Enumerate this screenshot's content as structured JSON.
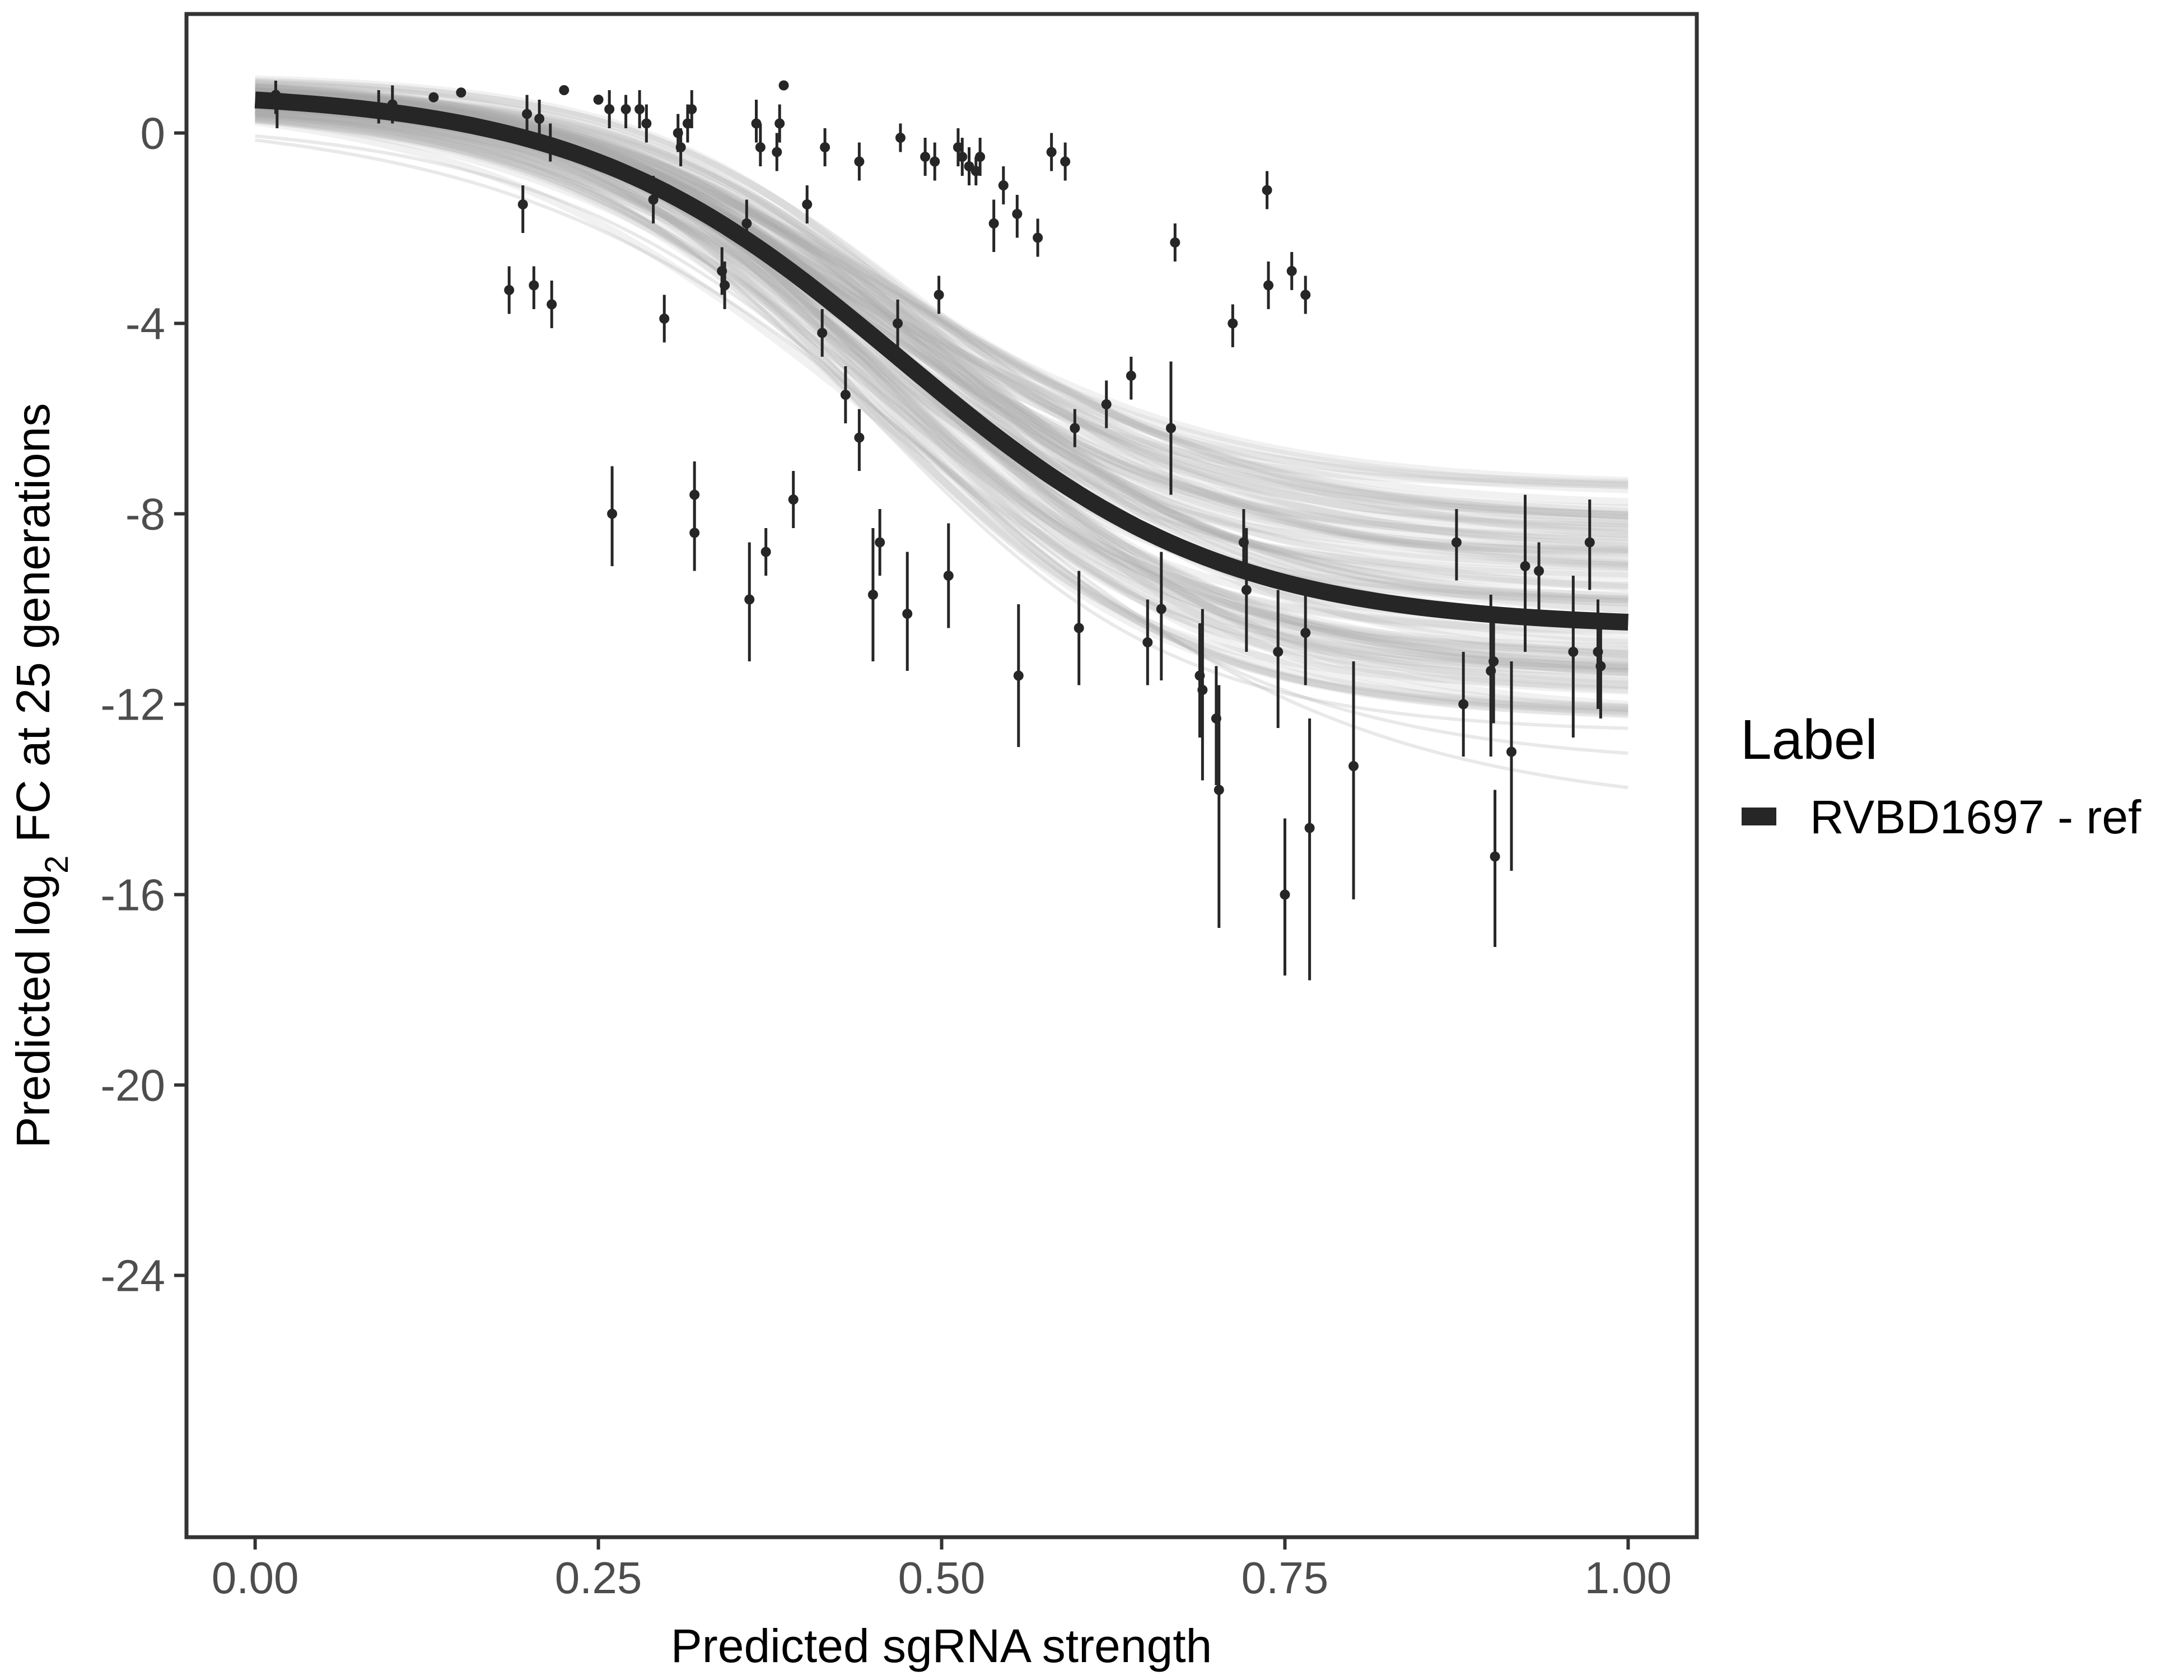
{
  "chart_data": {
    "type": "scatter",
    "xlabel": "Predicted sgRNA strength",
    "ylabel_parts": [
      "Predicted  log",
      "2",
      " FC at 25 generations"
    ],
    "xlim": [
      -0.05,
      1.05
    ],
    "ylim": [
      -29.5,
      2.5
    ],
    "x_ticks": [
      0,
      0.25,
      0.5,
      0.75,
      1
    ],
    "x_tick_labels": [
      "0.00",
      "0.25",
      "0.50",
      "0.75",
      "1.00"
    ],
    "y_ticks": [
      0,
      -4,
      -8,
      -12,
      -16,
      -20,
      -24
    ],
    "y_tick_labels": [
      "0",
      "-4",
      "-8",
      "-12",
      "-16",
      "-20",
      "-24"
    ],
    "legend": {
      "title": "Label",
      "entries": [
        {
          "label": "RVBD1697 - ref",
          "color": "#262626"
        }
      ]
    },
    "colors": {
      "fit_line": "#262626",
      "posterior_band": "#a6a6a6",
      "points": "#262626",
      "panel_border": "#333333"
    },
    "fit_curve": {
      "description": "logistic fit",
      "upper": 0.9,
      "lower": -10.4,
      "midpoint": 0.47,
      "slope": 8.5
    },
    "posterior_band": {
      "upper_edge_at_x1": -7.4,
      "lower_edge_at_x1": -12.4,
      "outlier_draw_end_at_x1": -14.3
    },
    "points": [
      {
        "x": 0.015,
        "y": 0.8,
        "lo": 0.4,
        "hi": 1.1
      },
      {
        "x": 0.016,
        "y": 0.6,
        "lo": 0.1,
        "hi": 0.9
      },
      {
        "x": 0.09,
        "y": 0.5,
        "lo": 0.2,
        "hi": 0.9
      },
      {
        "x": 0.1,
        "y": 0.6,
        "lo": 0.2,
        "hi": 1.0
      },
      {
        "x": 0.13,
        "y": 0.75,
        "lo": 0.65,
        "hi": 0.85
      },
      {
        "x": 0.15,
        "y": 0.85,
        "lo": 0.8,
        "hi": 0.9
      },
      {
        "x": 0.185,
        "y": -3.3,
        "lo": -3.8,
        "hi": -2.8
      },
      {
        "x": 0.195,
        "y": -1.5,
        "lo": -2.1,
        "hi": -1.1
      },
      {
        "x": 0.198,
        "y": 0.4,
        "lo": 0.0,
        "hi": 0.8
      },
      {
        "x": 0.203,
        "y": -3.2,
        "lo": -3.7,
        "hi": -2.8
      },
      {
        "x": 0.207,
        "y": 0.3,
        "lo": -0.1,
        "hi": 0.7
      },
      {
        "x": 0.215,
        "y": -0.2,
        "lo": -0.6,
        "hi": 0.2
      },
      {
        "x": 0.216,
        "y": -3.6,
        "lo": -4.1,
        "hi": -3.1
      },
      {
        "x": 0.225,
        "y": 0.9,
        "lo": 0.85,
        "hi": 0.95
      },
      {
        "x": 0.25,
        "y": 0.7,
        "lo": 0.6,
        "hi": 0.8
      },
      {
        "x": 0.258,
        "y": 0.5,
        "lo": 0.1,
        "hi": 0.9
      },
      {
        "x": 0.26,
        "y": -8.0,
        "lo": -9.1,
        "hi": -7.0
      },
      {
        "x": 0.27,
        "y": 0.5,
        "lo": 0.1,
        "hi": 0.8
      },
      {
        "x": 0.28,
        "y": 0.5,
        "lo": 0.1,
        "hi": 0.9
      },
      {
        "x": 0.285,
        "y": 0.2,
        "lo": -0.2,
        "hi": 0.6
      },
      {
        "x": 0.29,
        "y": -1.4,
        "lo": -1.9,
        "hi": -0.9
      },
      {
        "x": 0.298,
        "y": -3.9,
        "lo": -4.4,
        "hi": -3.4
      },
      {
        "x": 0.308,
        "y": 0.0,
        "lo": -0.4,
        "hi": 0.4
      },
      {
        "x": 0.31,
        "y": -0.3,
        "lo": -0.7,
        "hi": 0.1
      },
      {
        "x": 0.315,
        "y": 0.2,
        "lo": -0.2,
        "hi": 0.6
      },
      {
        "x": 0.318,
        "y": 0.5,
        "lo": 0.1,
        "hi": 0.9
      },
      {
        "x": 0.32,
        "y": -7.6,
        "lo": -8.4,
        "hi": -6.9
      },
      {
        "x": 0.32,
        "y": -8.4,
        "lo": -9.2,
        "hi": -7.7
      },
      {
        "x": 0.34,
        "y": -2.9,
        "lo": -3.4,
        "hi": -2.4
      },
      {
        "x": 0.342,
        "y": -3.2,
        "lo": -3.7,
        "hi": -2.7
      },
      {
        "x": 0.358,
        "y": -1.9,
        "lo": -2.4,
        "hi": -1.4
      },
      {
        "x": 0.36,
        "y": -9.8,
        "lo": -11.1,
        "hi": -8.6
      },
      {
        "x": 0.365,
        "y": 0.2,
        "lo": -0.2,
        "hi": 0.7
      },
      {
        "x": 0.368,
        "y": -0.3,
        "lo": -0.7,
        "hi": 0.2
      },
      {
        "x": 0.372,
        "y": -8.8,
        "lo": -9.3,
        "hi": -8.3
      },
      {
        "x": 0.38,
        "y": -0.4,
        "lo": -0.8,
        "hi": 0.0
      },
      {
        "x": 0.382,
        "y": 0.2,
        "lo": -0.2,
        "hi": 0.6
      },
      {
        "x": 0.385,
        "y": 1.0,
        "lo": 0.95,
        "hi": 1.05
      },
      {
        "x": 0.392,
        "y": -7.7,
        "lo": -8.3,
        "hi": -7.1
      },
      {
        "x": 0.402,
        "y": -1.5,
        "lo": -1.9,
        "hi": -1.1
      },
      {
        "x": 0.413,
        "y": -4.2,
        "lo": -4.7,
        "hi": -3.7
      },
      {
        "x": 0.415,
        "y": -0.3,
        "lo": -0.7,
        "hi": 0.1
      },
      {
        "x": 0.43,
        "y": -5.5,
        "lo": -6.1,
        "hi": -4.9
      },
      {
        "x": 0.44,
        "y": -6.4,
        "lo": -7.1,
        "hi": -5.8
      },
      {
        "x": 0.44,
        "y": -0.6,
        "lo": -1.0,
        "hi": -0.2
      },
      {
        "x": 0.45,
        "y": -9.7,
        "lo": -11.1,
        "hi": -8.3
      },
      {
        "x": 0.455,
        "y": -8.6,
        "lo": -9.3,
        "hi": -7.9
      },
      {
        "x": 0.468,
        "y": -4.0,
        "lo": -4.5,
        "hi": -3.5
      },
      {
        "x": 0.47,
        "y": -0.1,
        "lo": -0.4,
        "hi": 0.2
      },
      {
        "x": 0.475,
        "y": -10.1,
        "lo": -11.3,
        "hi": -8.8
      },
      {
        "x": 0.488,
        "y": -0.5,
        "lo": -0.9,
        "hi": -0.1
      },
      {
        "x": 0.495,
        "y": -0.6,
        "lo": -1.0,
        "hi": -0.2
      },
      {
        "x": 0.498,
        "y": -3.4,
        "lo": -3.8,
        "hi": -3.0
      },
      {
        "x": 0.505,
        "y": -9.3,
        "lo": -10.4,
        "hi": -8.2
      },
      {
        "x": 0.512,
        "y": -0.3,
        "lo": -0.7,
        "hi": 0.1
      },
      {
        "x": 0.515,
        "y": -0.5,
        "lo": -0.9,
        "hi": -0.1
      },
      {
        "x": 0.52,
        "y": -0.7,
        "lo": -1.1,
        "hi": -0.3
      },
      {
        "x": 0.525,
        "y": -0.8,
        "lo": -1.1,
        "hi": -0.5
      },
      {
        "x": 0.528,
        "y": -0.5,
        "lo": -0.9,
        "hi": -0.1
      },
      {
        "x": 0.538,
        "y": -1.9,
        "lo": -2.5,
        "hi": -1.4
      },
      {
        "x": 0.545,
        "y": -1.1,
        "lo": -1.5,
        "hi": -0.7
      },
      {
        "x": 0.555,
        "y": -1.7,
        "lo": -2.2,
        "hi": -1.3
      },
      {
        "x": 0.556,
        "y": -11.4,
        "lo": -12.9,
        "hi": -9.9
      },
      {
        "x": 0.57,
        "y": -2.2,
        "lo": -2.6,
        "hi": -1.8
      },
      {
        "x": 0.58,
        "y": -0.4,
        "lo": -0.8,
        "hi": 0.0
      },
      {
        "x": 0.59,
        "y": -0.6,
        "lo": -1.0,
        "hi": -0.2
      },
      {
        "x": 0.597,
        "y": -6.2,
        "lo": -6.6,
        "hi": -5.8
      },
      {
        "x": 0.6,
        "y": -10.4,
        "lo": -11.6,
        "hi": -9.2
      },
      {
        "x": 0.62,
        "y": -5.7,
        "lo": -6.2,
        "hi": -5.2
      },
      {
        "x": 0.638,
        "y": -5.1,
        "lo": -5.6,
        "hi": -4.7
      },
      {
        "x": 0.65,
        "y": -10.7,
        "lo": -11.6,
        "hi": -9.8
      },
      {
        "x": 0.66,
        "y": -10.0,
        "lo": -11.5,
        "hi": -8.8
      },
      {
        "x": 0.667,
        "y": -6.2,
        "lo": -7.6,
        "hi": -4.8
      },
      {
        "x": 0.67,
        "y": -2.3,
        "lo": -2.7,
        "hi": -1.9
      },
      {
        "x": 0.688,
        "y": -11.4,
        "lo": -12.7,
        "hi": -10.3
      },
      {
        "x": 0.69,
        "y": -11.7,
        "lo": -13.6,
        "hi": -10.0
      },
      {
        "x": 0.7,
        "y": -12.3,
        "lo": -13.7,
        "hi": -11.2
      },
      {
        "x": 0.702,
        "y": -13.8,
        "lo": -16.7,
        "hi": -11.6
      },
      {
        "x": 0.712,
        "y": -4.0,
        "lo": -4.5,
        "hi": -3.6
      },
      {
        "x": 0.72,
        "y": -8.6,
        "lo": -9.2,
        "hi": -7.9
      },
      {
        "x": 0.722,
        "y": -9.6,
        "lo": -10.9,
        "hi": -8.3
      },
      {
        "x": 0.737,
        "y": -1.2,
        "lo": -1.6,
        "hi": -0.8
      },
      {
        "x": 0.738,
        "y": -3.2,
        "lo": -3.7,
        "hi": -2.7
      },
      {
        "x": 0.745,
        "y": -10.9,
        "lo": -12.5,
        "hi": -9.6
      },
      {
        "x": 0.75,
        "y": -16.0,
        "lo": -17.7,
        "hi": -14.4
      },
      {
        "x": 0.755,
        "y": -2.9,
        "lo": -3.3,
        "hi": -2.5
      },
      {
        "x": 0.765,
        "y": -10.5,
        "lo": -11.6,
        "hi": -9.5
      },
      {
        "x": 0.765,
        "y": -3.4,
        "lo": -3.8,
        "hi": -3.0
      },
      {
        "x": 0.768,
        "y": -14.6,
        "lo": -17.8,
        "hi": -12.3
      },
      {
        "x": 0.8,
        "y": -13.3,
        "lo": -16.1,
        "hi": -11.1
      },
      {
        "x": 0.875,
        "y": -8.6,
        "lo": -9.4,
        "hi": -7.9
      },
      {
        "x": 0.88,
        "y": -12.0,
        "lo": -13.1,
        "hi": -10.9
      },
      {
        "x": 0.9,
        "y": -11.3,
        "lo": -13.1,
        "hi": -9.7
      },
      {
        "x": 0.902,
        "y": -11.1,
        "lo": -12.4,
        "hi": -10.1
      },
      {
        "x": 0.903,
        "y": -15.2,
        "lo": -17.1,
        "hi": -13.8
      },
      {
        "x": 0.915,
        "y": -13.0,
        "lo": -15.5,
        "hi": -11.1
      },
      {
        "x": 0.925,
        "y": -9.1,
        "lo": -10.9,
        "hi": -7.6
      },
      {
        "x": 0.935,
        "y": -9.2,
        "lo": -10.1,
        "hi": -8.6
      },
      {
        "x": 0.96,
        "y": -10.9,
        "lo": -12.7,
        "hi": -9.3
      },
      {
        "x": 0.972,
        "y": -8.6,
        "lo": -9.6,
        "hi": -7.7
      },
      {
        "x": 0.978,
        "y": -10.9,
        "lo": -12.1,
        "hi": -9.8
      },
      {
        "x": 0.98,
        "y": -11.2,
        "lo": -12.3,
        "hi": -10.1
      }
    ]
  }
}
